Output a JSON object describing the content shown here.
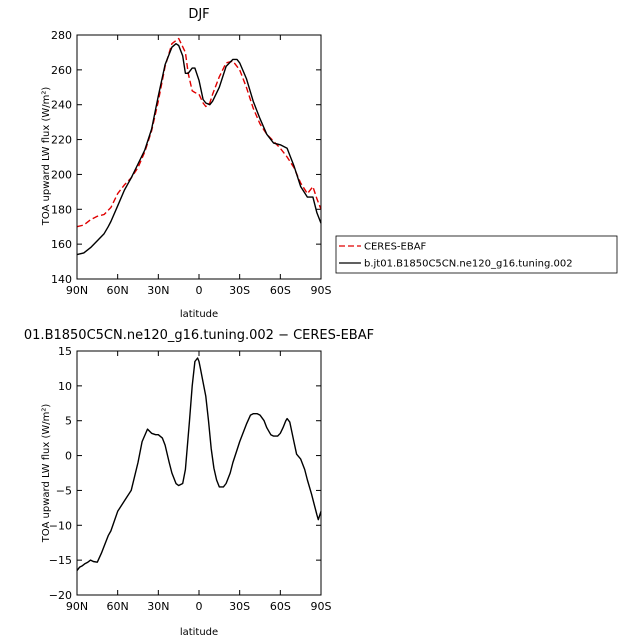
{
  "chart_data": [
    {
      "type": "line",
      "title": "DJF",
      "xlabel": "latitude",
      "ylabel": "TOA upward LW flux (W/m²)",
      "xlim": [
        -90,
        90
      ],
      "ylim": [
        140,
        280
      ],
      "xticks": [
        -90,
        -60,
        -30,
        0,
        30,
        60,
        90
      ],
      "xtick_labels": [
        "90N",
        "60N",
        "30N",
        "0",
        "30S",
        "60S",
        "90S"
      ],
      "yticks": [
        140,
        160,
        180,
        200,
        220,
        240,
        260,
        280
      ],
      "grid": false,
      "legend": "right",
      "series": [
        {
          "name": "CERES-EBAF",
          "color": "#e00000",
          "dash": "dashed",
          "x": [
            -90,
            -85,
            -80,
            -75,
            -70,
            -65,
            -60,
            -55,
            -50,
            -45,
            -40,
            -35,
            -30,
            -25,
            -20,
            -15,
            -10,
            -8,
            -5,
            -3,
            0,
            3,
            5,
            8,
            10,
            15,
            20,
            25,
            30,
            35,
            40,
            45,
            50,
            55,
            60,
            65,
            70,
            75,
            80,
            84,
            87,
            90
          ],
          "y": [
            170,
            171,
            174,
            176,
            177,
            181,
            189,
            194,
            198,
            204,
            213,
            225,
            242,
            262,
            275,
            278,
            270,
            258,
            248,
            247,
            246,
            241,
            239,
            241,
            246,
            256,
            264,
            265,
            260,
            250,
            238,
            229,
            223,
            219,
            215,
            210,
            204,
            195,
            189,
            193,
            186,
            180
          ]
        },
        {
          "name": "b.jt01.B1850C5CN.ne120_g16.tuning.002",
          "color": "#000000",
          "dash": "solid",
          "x": [
            -90,
            -85,
            -80,
            -75,
            -70,
            -67,
            -65,
            -60,
            -55,
            -50,
            -45,
            -40,
            -35,
            -30,
            -25,
            -20,
            -17,
            -15,
            -12,
            -10,
            -8,
            -5,
            -3,
            0,
            3,
            5,
            8,
            10,
            15,
            20,
            25,
            28,
            30,
            35,
            40,
            45,
            50,
            55,
            60,
            65,
            70,
            75,
            80,
            84,
            87,
            90
          ],
          "y": [
            154,
            155,
            158,
            162,
            166,
            170,
            173,
            182,
            191,
            198,
            206,
            214,
            226,
            245,
            263,
            273,
            275,
            274,
            268,
            258,
            258,
            261,
            261,
            254,
            243,
            241,
            240,
            242,
            250,
            262,
            266,
            266,
            264,
            255,
            242,
            232,
            223,
            218,
            217,
            215,
            205,
            193,
            187,
            187,
            178,
            172
          ]
        }
      ]
    },
    {
      "type": "line",
      "title": "01.B1850C5CN.ne120_g16.tuning.002 − CERES-EBAF",
      "xlabel": "latitude",
      "ylabel": "TOA upward LW flux (W/m²)",
      "xlim": [
        -90,
        90
      ],
      "ylim": [
        -20,
        15
      ],
      "xticks": [
        -90,
        -60,
        -30,
        0,
        30,
        60,
        90
      ],
      "xtick_labels": [
        "90N",
        "60N",
        "30N",
        "0",
        "30S",
        "60S",
        "90S"
      ],
      "yticks": [
        -20,
        -15,
        -10,
        -5,
        0,
        5,
        10,
        15
      ],
      "grid": false,
      "series": [
        {
          "name": "",
          "color": "#000000",
          "dash": "solid",
          "x": [
            -90,
            -88,
            -86,
            -84,
            -82,
            -80,
            -78,
            -75,
            -72,
            -70,
            -67,
            -65,
            -60,
            -55,
            -50,
            -45,
            -42,
            -38,
            -35,
            -32,
            -30,
            -27,
            -25,
            -22,
            -20,
            -17,
            -15,
            -12,
            -10,
            -7,
            -5,
            -3,
            -1,
            0,
            1,
            3,
            5,
            7,
            9,
            11,
            13,
            15,
            18,
            20,
            23,
            25,
            28,
            30,
            33,
            35,
            38,
            40,
            43,
            45,
            48,
            50,
            53,
            55,
            58,
            60,
            62,
            64,
            65,
            67,
            70,
            72,
            75,
            78,
            80,
            83,
            85,
            87,
            88,
            90
          ],
          "y": [
            -16.5,
            -16.0,
            -15.8,
            -15.5,
            -15.3,
            -15.0,
            -15.2,
            -15.3,
            -14.0,
            -13.0,
            -11.5,
            -10.8,
            -8.0,
            -6.5,
            -5.0,
            -1.0,
            2.0,
            3.8,
            3.2,
            3.0,
            3.0,
            2.5,
            1.5,
            -1.0,
            -2.5,
            -4.0,
            -4.3,
            -4.0,
            -2.0,
            5.0,
            10.0,
            13.5,
            14.0,
            13.5,
            12.5,
            10.5,
            8.5,
            5.0,
            1.0,
            -1.8,
            -3.5,
            -4.5,
            -4.5,
            -4.0,
            -2.5,
            -1.0,
            0.8,
            2.0,
            3.5,
            4.5,
            5.8,
            6.0,
            6.0,
            5.8,
            5.0,
            4.0,
            3.0,
            2.8,
            2.8,
            3.2,
            4.0,
            5.0,
            5.3,
            4.8,
            2.0,
            0.2,
            -0.5,
            -2.0,
            -3.5,
            -5.5,
            -7.0,
            -8.5,
            -9.2,
            -8.0
          ]
        }
      ]
    }
  ]
}
